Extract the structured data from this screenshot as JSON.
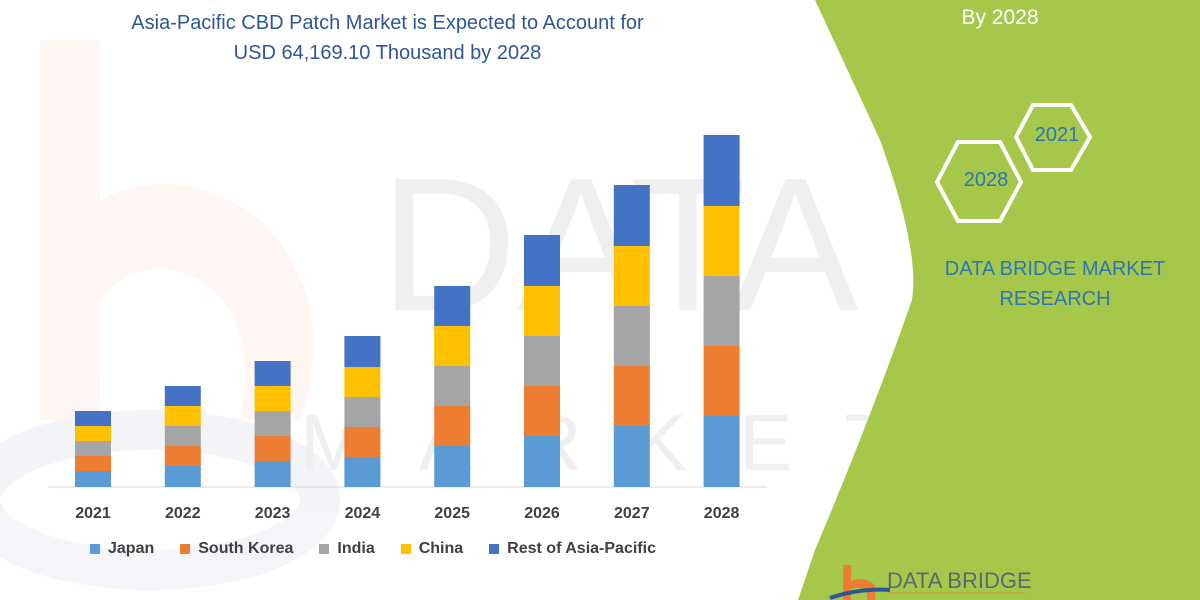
{
  "title_lines": [
    "Asia-Pacific CBD Patch Market is Expected to Account for",
    "USD 64,169.10 Thousand by 2028"
  ],
  "side_panel": {
    "top_text": "By 2028",
    "hex_years": [
      "2021",
      "2028"
    ],
    "brand_lines": [
      "DATA BRIDGE MARKET",
      "RESEARCH"
    ],
    "logo_text": "DATA BRIDGE",
    "green": "#a5c84a"
  },
  "watermark": {
    "line1": "DATA BRIDGE",
    "line2": "MARKET RESEARCH"
  },
  "chart_data": {
    "type": "bar",
    "stacked": true,
    "title": "Asia-Pacific CBD Patch Market is Expected to Account for USD 64,169.10 Thousand by 2028",
    "categories": [
      "2021",
      "2022",
      "2023",
      "2024",
      "2025",
      "2026",
      "2027",
      "2028"
    ],
    "series": [
      {
        "name": "Japan",
        "color": "#5b9bd5",
        "values": [
          16,
          21,
          26,
          30,
          41,
          51,
          61,
          71
        ]
      },
      {
        "name": "South Korea",
        "color": "#ed7d31",
        "values": [
          15,
          20,
          25,
          30,
          40,
          50,
          60,
          70
        ]
      },
      {
        "name": "India",
        "color": "#a5a5a5",
        "values": [
          15,
          20,
          25,
          30,
          40,
          50,
          60,
          70
        ]
      },
      {
        "name": "China",
        "color": "#ffc000",
        "values": [
          15,
          20,
          25,
          30,
          40,
          50,
          60,
          70
        ]
      },
      {
        "name": "Rest of Asia-Pacific",
        "color": "#4472c4",
        "values": [
          15,
          20,
          25,
          31,
          40,
          51,
          61,
          71
        ]
      }
    ],
    "y_axis_shown": false,
    "grid": false,
    "legend_position": "bottom"
  }
}
